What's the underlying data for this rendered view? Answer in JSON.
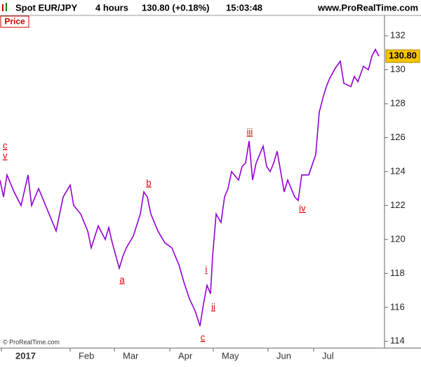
{
  "chart_data": {
    "type": "line",
    "title": "Spot EUR/JPY",
    "timeframe": "4 hours",
    "quote": "130.80 (+0.18%)",
    "time": "15:03:48",
    "source": "www.ProRealTime.com",
    "panel_label": "Price",
    "copyright": "© ProRealTime.com",
    "last_value": 130.8,
    "last_value_label": "130.80",
    "x": [
      0,
      5,
      10,
      20,
      30,
      40,
      45,
      55,
      65,
      75,
      80,
      90,
      100,
      105,
      115,
      125,
      130,
      140,
      150,
      155,
      160,
      170,
      175,
      180,
      190,
      200,
      205,
      210,
      215,
      225,
      235,
      245,
      255,
      262,
      270,
      278,
      285,
      290,
      295,
      300,
      303,
      308,
      315,
      320,
      325,
      330,
      340,
      345,
      350,
      355,
      360,
      365,
      370,
      375,
      380,
      385,
      390,
      395,
      400,
      405,
      410,
      415,
      420,
      425,
      430,
      440,
      450,
      455,
      460,
      465,
      470,
      478,
      485,
      490,
      500,
      505,
      510,
      518,
      525,
      530,
      535,
      540
    ],
    "series": [
      {
        "name": "EUR/JPY",
        "color": "#9400d3",
        "values": [
          123.5,
          122.5,
          123.8,
          122.8,
          122,
          123.8,
          122,
          123,
          122,
          121,
          120.5,
          122.5,
          123.2,
          122,
          121.5,
          120.5,
          119.5,
          120.8,
          120,
          120.7,
          119.8,
          118.3,
          119,
          119.5,
          120.2,
          121.5,
          122.8,
          122.5,
          121.5,
          120.5,
          119.8,
          119.5,
          118.5,
          117.5,
          116.5,
          115.8,
          114.9,
          116.2,
          117.3,
          116.8,
          119,
          121.5,
          121,
          122.5,
          123,
          124,
          123.5,
          124.3,
          124.5,
          125.8,
          123.5,
          124.5,
          125,
          125.5,
          124.3,
          124,
          124.5,
          125.2,
          124,
          122.8,
          123.5,
          123,
          122.5,
          122.3,
          123.8,
          123.8,
          125,
          127.5,
          128.3,
          129,
          129.5,
          130.1,
          130.5,
          129.2,
          129,
          129.6,
          129.3,
          130.2,
          130,
          130.8,
          131.2,
          130.8
        ]
      }
    ],
    "xlim": [
      0,
      548
    ],
    "xticks": [
      {
        "value": 2,
        "label": "2017"
      },
      {
        "value": 100,
        "label": "Feb"
      },
      {
        "value": 163,
        "label": "Mar"
      },
      {
        "value": 242,
        "label": "Apr"
      },
      {
        "value": 304,
        "label": "May"
      },
      {
        "value": 382,
        "label": "Jun"
      },
      {
        "value": 447,
        "label": "Jul"
      }
    ],
    "ylim": [
      113.6,
      133.2
    ],
    "yticks": [
      114,
      116,
      118,
      120,
      122,
      124,
      126,
      128,
      130,
      132
    ],
    "annotations": [
      {
        "text": "c",
        "x": 0,
        "y": 125.5
      },
      {
        "text": "v",
        "x": 0,
        "y": 124.9
      },
      {
        "text": "a",
        "x": 170,
        "y": 117.6
      },
      {
        "text": "b",
        "x": 208,
        "y": 123.3
      },
      {
        "text": "c",
        "x": 285,
        "y": 114.2
      },
      {
        "text": "i",
        "x": 290,
        "y": 118.2
      },
      {
        "text": "ii",
        "x": 300,
        "y": 116
      },
      {
        "text": "iii",
        "x": 352,
        "y": 126.3
      },
      {
        "text": "iv",
        "x": 427,
        "y": 121.8
      }
    ]
  }
}
